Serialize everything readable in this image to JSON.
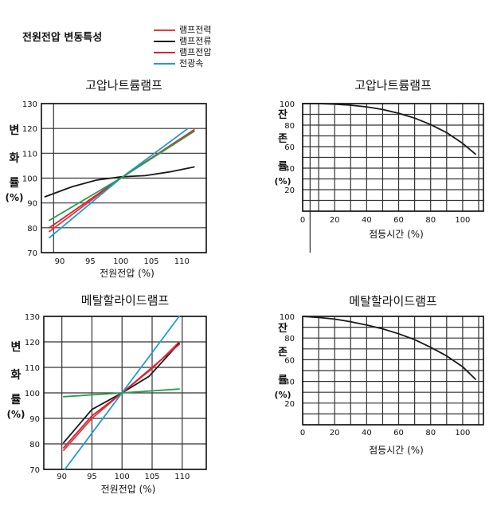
{
  "page_title": "전원전압 변동특성",
  "legend": [
    {
      "label": "램프전력",
      "color": "#e8383d"
    },
    {
      "label": "램프전류",
      "color": "#1a1a1a"
    },
    {
      "label": "램프전압",
      "color": "#d9203a"
    },
    {
      "label": "전광속",
      "color": "#1e9bd7"
    }
  ],
  "chart_data": [
    {
      "type": "line",
      "title": "고압나트륨램프",
      "xlabel": "전원전압 (%)",
      "ylabel": "변 화 률 (%)",
      "xlim": [
        87,
        114
      ],
      "ylim": [
        70,
        130
      ],
      "x_ticks": [
        "90",
        "95",
        "100",
        "105",
        "110"
      ],
      "y_ticks": [
        "70",
        "80",
        "90",
        "100",
        "110",
        "120",
        "130"
      ],
      "grid": true,
      "series": [
        {
          "name": "램프전력",
          "color": "#e8383d",
          "points": [
            [
              88.3,
              78.5
            ],
            [
              100,
              100
            ],
            [
              112,
              119.5
            ]
          ]
        },
        {
          "name": "램프전류",
          "color": "#1a1a1a",
          "points": [
            [
              87.6,
              92.5
            ],
            [
              92,
              96.5
            ],
            [
              96,
              99.2
            ],
            [
              100,
              100.5
            ],
            [
              104,
              101
            ],
            [
              108,
              102.5
            ],
            [
              112,
              104.5
            ]
          ]
        },
        {
          "name": "램프전압",
          "color": "#d9203a",
          "points": [
            [
              88.3,
              80
            ],
            [
              100,
              100
            ],
            [
              112,
              119
            ]
          ]
        },
        {
          "name": "전광속",
          "color": "#1e9bd7",
          "points": [
            [
              88.3,
              76
            ],
            [
              100,
              100
            ],
            [
              111,
              120
            ]
          ]
        },
        {
          "name": "",
          "color": "#22a04b",
          "points": [
            [
              88.3,
              83
            ],
            [
              100,
              100
            ],
            [
              112,
              118.8
            ]
          ]
        }
      ]
    },
    {
      "type": "line",
      "title": "고압나트륨램프",
      "xlabel": "점등시간 (%)",
      "ylabel": "잔 존 률 (%)",
      "xlim": [
        0,
        113
      ],
      "ylim": [
        0,
        100
      ],
      "x_ticks": [
        "0",
        "20",
        "40",
        "60",
        "80",
        "100"
      ],
      "y_ticks": [
        "20",
        "40",
        "60",
        "80",
        "100"
      ],
      "grid": true,
      "series": [
        {
          "name": "",
          "color": "#1a1a1a",
          "points": [
            [
              0,
              100
            ],
            [
              10,
              100
            ],
            [
              20,
              99.5
            ],
            [
              30,
              98.5
            ],
            [
              40,
              97
            ],
            [
              50,
              94.5
            ],
            [
              60,
              91
            ],
            [
              70,
              86.5
            ],
            [
              80,
              80.5
            ],
            [
              90,
              73
            ],
            [
              100,
              63
            ],
            [
              108,
              53
            ]
          ]
        }
      ]
    },
    {
      "type": "line",
      "title": "메탈할라이드램프",
      "xlabel": "전원전압 (%)",
      "ylabel": "변 화 률 (%)",
      "xlim": [
        87,
        114
      ],
      "ylim": [
        70,
        130
      ],
      "x_ticks": [
        "90",
        "95",
        "100",
        "105",
        "110"
      ],
      "y_ticks": [
        "70",
        "80",
        "90",
        "100",
        "110",
        "120",
        "130"
      ],
      "grid": true,
      "series": [
        {
          "name": "램프전력",
          "color": "#e8383d",
          "points": [
            [
              90.3,
              77.5
            ],
            [
              95,
              90
            ],
            [
              100,
              100
            ],
            [
              105,
              109.5
            ],
            [
              109.5,
              120
            ]
          ]
        },
        {
          "name": "램프전류",
          "color": "#1a1a1a",
          "points": [
            [
              90.3,
              80.5
            ],
            [
              95,
              93.5
            ],
            [
              100,
              100
            ],
            [
              104.5,
              106.5
            ],
            [
              109.5,
              119.5
            ]
          ]
        },
        {
          "name": "램프전압",
          "color": "#d9203a",
          "points": [
            [
              90.3,
              78.5
            ],
            [
              95,
              91
            ],
            [
              100,
              100
            ],
            [
              105,
              110
            ],
            [
              109.5,
              119
            ]
          ]
        },
        {
          "name": "전광속",
          "color": "#1e9bd7",
          "points": [
            [
              90.5,
              70
            ],
            [
              100,
              100
            ],
            [
              109.5,
              130
            ]
          ]
        },
        {
          "name": "",
          "color": "#22a04b",
          "points": [
            [
              90.3,
              98.5
            ],
            [
              100,
              100
            ],
            [
              109.5,
              101.5
            ]
          ]
        }
      ]
    },
    {
      "type": "line",
      "title": "메탈할라이드램프",
      "xlabel": "점등시간 (%)",
      "ylabel": "잔 존 률 (%)",
      "xlim": [
        0,
        113
      ],
      "ylim": [
        0,
        100
      ],
      "x_ticks": [
        "0",
        "20",
        "40",
        "60",
        "80",
        "100"
      ],
      "y_ticks": [
        "20",
        "40",
        "60",
        "80",
        "100"
      ],
      "grid": true,
      "series": [
        {
          "name": "",
          "color": "#1a1a1a",
          "points": [
            [
              0,
              100
            ],
            [
              10,
              99
            ],
            [
              20,
              97.5
            ],
            [
              30,
              95
            ],
            [
              40,
              92
            ],
            [
              50,
              88.5
            ],
            [
              60,
              84
            ],
            [
              70,
              78.5
            ],
            [
              80,
              71.5
            ],
            [
              90,
              63.5
            ],
            [
              100,
              53.5
            ],
            [
              108,
              42
            ]
          ]
        }
      ]
    }
  ]
}
